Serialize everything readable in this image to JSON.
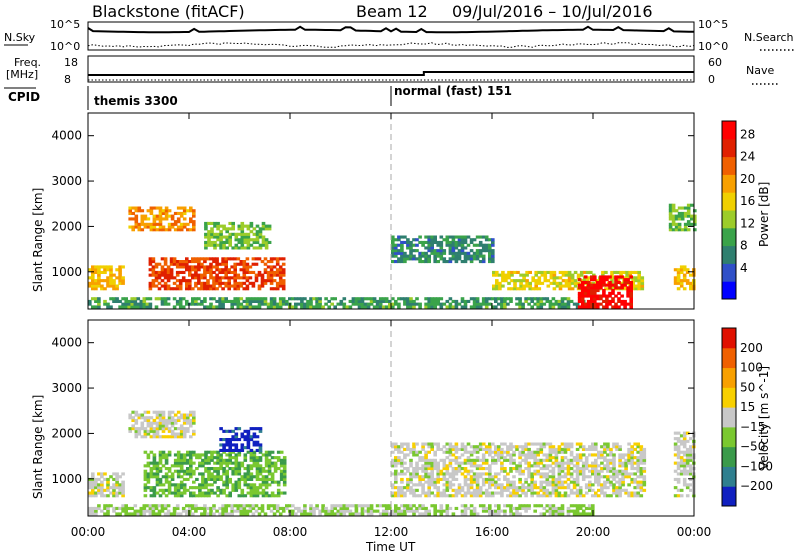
{
  "header": {
    "title": "Blackstone (fitACF)",
    "beam": "Beam 12",
    "date_range": "09/Jul/2016 – 10/Jul/2016"
  },
  "top_panels": {
    "nsky_label": "N.Sky",
    "nsearch_label": "N.Search",
    "count_tick_high": "10^5",
    "count_tick_low": "10^0",
    "freq_label": "Freq.",
    "freq_unit": "[MHz]",
    "freq_ticks": [
      "18",
      "8"
    ],
    "nave_label": "Nave",
    "nave_ticks": [
      "60",
      "0"
    ],
    "cpid_label": "CPID",
    "cpid_segments": [
      {
        "name": "themis 3300",
        "start_hour": 0,
        "end_hour": 12
      },
      {
        "name": "normal (fast) 151",
        "start_hour": 12,
        "end_hour": 24
      }
    ]
  },
  "x_axis": {
    "label": "Time UT",
    "ticks": [
      "00:00",
      "04:00",
      "08:00",
      "12:00",
      "16:00",
      "20:00",
      "00:00"
    ],
    "range_hours": [
      0,
      24
    ]
  },
  "panels": [
    {
      "name": "power",
      "ylabel": "Slant Range [km]",
      "yticks": [
        "4000",
        "3000",
        "2000",
        "1000"
      ],
      "colorbar_label": "Power [dB]",
      "colorbar_ticks": [
        "28",
        "24",
        "20",
        "16",
        "12",
        "8",
        "4"
      ],
      "colors": [
        "#0000ff",
        "#3050c8",
        "#2f7f6f",
        "#3aa34a",
        "#9ccc2a",
        "#f0d000",
        "#f8a000",
        "#f06000",
        "#e02000",
        "#ff0000"
      ]
    },
    {
      "name": "velocity",
      "ylabel": "Slant Range [km]",
      "yticks": [
        "4000",
        "3000",
        "2000",
        "1000"
      ],
      "colorbar_label": "Velocity [m s^-1]",
      "colorbar_ticks": [
        "200",
        "100",
        "50",
        "15",
        "−15",
        "−50",
        "−100",
        "−200"
      ],
      "colors": [
        "#1020c0",
        "#2f7f8f",
        "#3a9a4a",
        "#7ac830",
        "#c8c8c8",
        "#f8d000",
        "#f8a000",
        "#f06000",
        "#e01000"
      ]
    }
  ],
  "chart_data": [
    {
      "type": "heatmap",
      "title": "",
      "xlabel": "Time UT",
      "ylabel": "Slant Range [km]",
      "xlim": [
        0,
        24
      ],
      "ylim": [
        180,
        4500
      ],
      "colorbar": "Power [dB]",
      "color_range": [
        0,
        30
      ],
      "regions": [
        {
          "t0": 0.0,
          "t1": 1.4,
          "r0": 600,
          "r1": 1100,
          "value": 18
        },
        {
          "t0": 1.6,
          "t1": 4.2,
          "r0": 1900,
          "r1": 2400,
          "value": 20
        },
        {
          "t0": 2.4,
          "t1": 7.8,
          "r0": 600,
          "r1": 1300,
          "value": 24
        },
        {
          "t0": 4.6,
          "t1": 7.2,
          "r0": 1500,
          "r1": 2100,
          "value": 12
        },
        {
          "t0": 0.0,
          "t1": 20.0,
          "r0": 200,
          "r1": 400,
          "value": 10
        },
        {
          "t0": 12.0,
          "t1": 16.0,
          "r0": 1200,
          "r1": 1800,
          "value": 8
        },
        {
          "t0": 16.0,
          "t1": 22.0,
          "r0": 600,
          "r1": 1000,
          "value": 16
        },
        {
          "t0": 19.4,
          "t1": 21.5,
          "r0": 200,
          "r1": 900,
          "value": 28
        },
        {
          "t0": 23.2,
          "t1": 24.0,
          "r0": 600,
          "r1": 1100,
          "value": 18
        },
        {
          "t0": 23.0,
          "t1": 24.0,
          "r0": 1900,
          "r1": 2500,
          "value": 12
        }
      ]
    },
    {
      "type": "heatmap",
      "title": "",
      "xlabel": "Time UT",
      "ylabel": "Slant Range [km]",
      "xlim": [
        0,
        24
      ],
      "ylim": [
        180,
        4500
      ],
      "colorbar": "Velocity [m s^-1]",
      "color_range": [
        -200,
        200
      ],
      "regions": [
        {
          "t0": 0.0,
          "t1": 1.4,
          "r0": 600,
          "r1": 1100,
          "value": 0
        },
        {
          "t0": 1.6,
          "t1": 4.2,
          "r0": 1900,
          "r1": 2500,
          "value": 0
        },
        {
          "t0": 2.2,
          "t1": 7.8,
          "r0": 600,
          "r1": 1600,
          "value": -60
        },
        {
          "t0": 5.2,
          "t1": 6.8,
          "r0": 1600,
          "r1": 2100,
          "value": -180
        },
        {
          "t0": 0.0,
          "t1": 20.0,
          "r0": 200,
          "r1": 400,
          "value": -30
        },
        {
          "t0": 12.0,
          "t1": 22.0,
          "r0": 600,
          "r1": 1800,
          "value": 0
        },
        {
          "t0": 23.2,
          "t1": 24.0,
          "r0": 600,
          "r1": 2000,
          "value": 0
        }
      ]
    }
  ]
}
